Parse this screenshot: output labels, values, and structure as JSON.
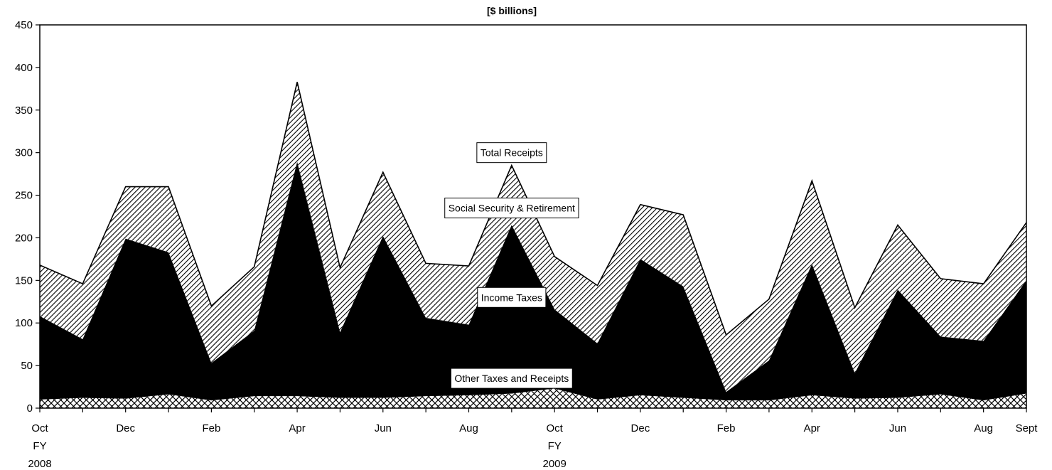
{
  "chart_data": {
    "type": "area",
    "stacked": true,
    "title": "[$ billions]",
    "xlabel": "",
    "ylabel": "",
    "ylim": [
      0,
      450
    ],
    "yticks": [
      0,
      50,
      100,
      150,
      200,
      250,
      300,
      350,
      400,
      450
    ],
    "grid": false,
    "legend": "none",
    "x_labels": [
      {
        "index": 0,
        "lines": [
          "Oct",
          "FY",
          "2008"
        ]
      },
      {
        "index": 2,
        "lines": [
          "Dec"
        ]
      },
      {
        "index": 4,
        "lines": [
          "Feb"
        ]
      },
      {
        "index": 6,
        "lines": [
          "Apr"
        ]
      },
      {
        "index": 8,
        "lines": [
          "Jun"
        ]
      },
      {
        "index": 10,
        "lines": [
          "Aug"
        ]
      },
      {
        "index": 12,
        "lines": [
          "Oct",
          "FY",
          "2009"
        ]
      },
      {
        "index": 14,
        "lines": [
          "Dec"
        ]
      },
      {
        "index": 16,
        "lines": [
          "Feb"
        ]
      },
      {
        "index": 18,
        "lines": [
          "Apr"
        ]
      },
      {
        "index": 20,
        "lines": [
          "Jun"
        ]
      },
      {
        "index": 22,
        "lines": [
          "Aug"
        ]
      },
      {
        "index": 23,
        "lines": [
          "Sept"
        ]
      }
    ],
    "series": [
      {
        "name": "Other Taxes and Receipts",
        "values": [
          10,
          12,
          11,
          16,
          9,
          14,
          14,
          12,
          12,
          14,
          15,
          17,
          23,
          10,
          15,
          12,
          9,
          9,
          15,
          11,
          12,
          16,
          9,
          17
        ]
      },
      {
        "name": "Income Taxes",
        "values": [
          98,
          69,
          188,
          167,
          44,
          77,
          275,
          77,
          190,
          92,
          83,
          198,
          93,
          66,
          160,
          131,
          10,
          47,
          154,
          30,
          127,
          68,
          70,
          133
        ]
      },
      {
        "name": "Social Security & Retirement",
        "values": [
          60,
          65,
          61,
          77,
          67,
          75,
          94,
          76,
          75,
          64,
          69,
          70,
          62,
          68,
          64,
          84,
          67,
          72,
          98,
          77,
          76,
          68,
          67,
          68
        ]
      }
    ],
    "total_values": [
      168,
      146,
      260,
      260,
      120,
      166,
      383,
      165,
      277,
      170,
      167,
      285,
      178,
      144,
      239,
      227,
      86,
      128,
      267,
      118,
      215,
      152,
      146,
      218
    ],
    "annotations": [
      {
        "text": "Total Receipts",
        "x_index": 11,
        "y": 300
      },
      {
        "text": "Social Security & Retirement",
        "x_index": 11,
        "y": 235
      },
      {
        "text": "Income Taxes",
        "x_index": 11,
        "y": 130
      },
      {
        "text": "Other Taxes and Receipts",
        "x_index": 11,
        "y": 35
      }
    ],
    "colors": {
      "income": "#000000",
      "social_stripe": "#000000",
      "other_hatch": "#000000",
      "background": "#ffffff"
    }
  }
}
